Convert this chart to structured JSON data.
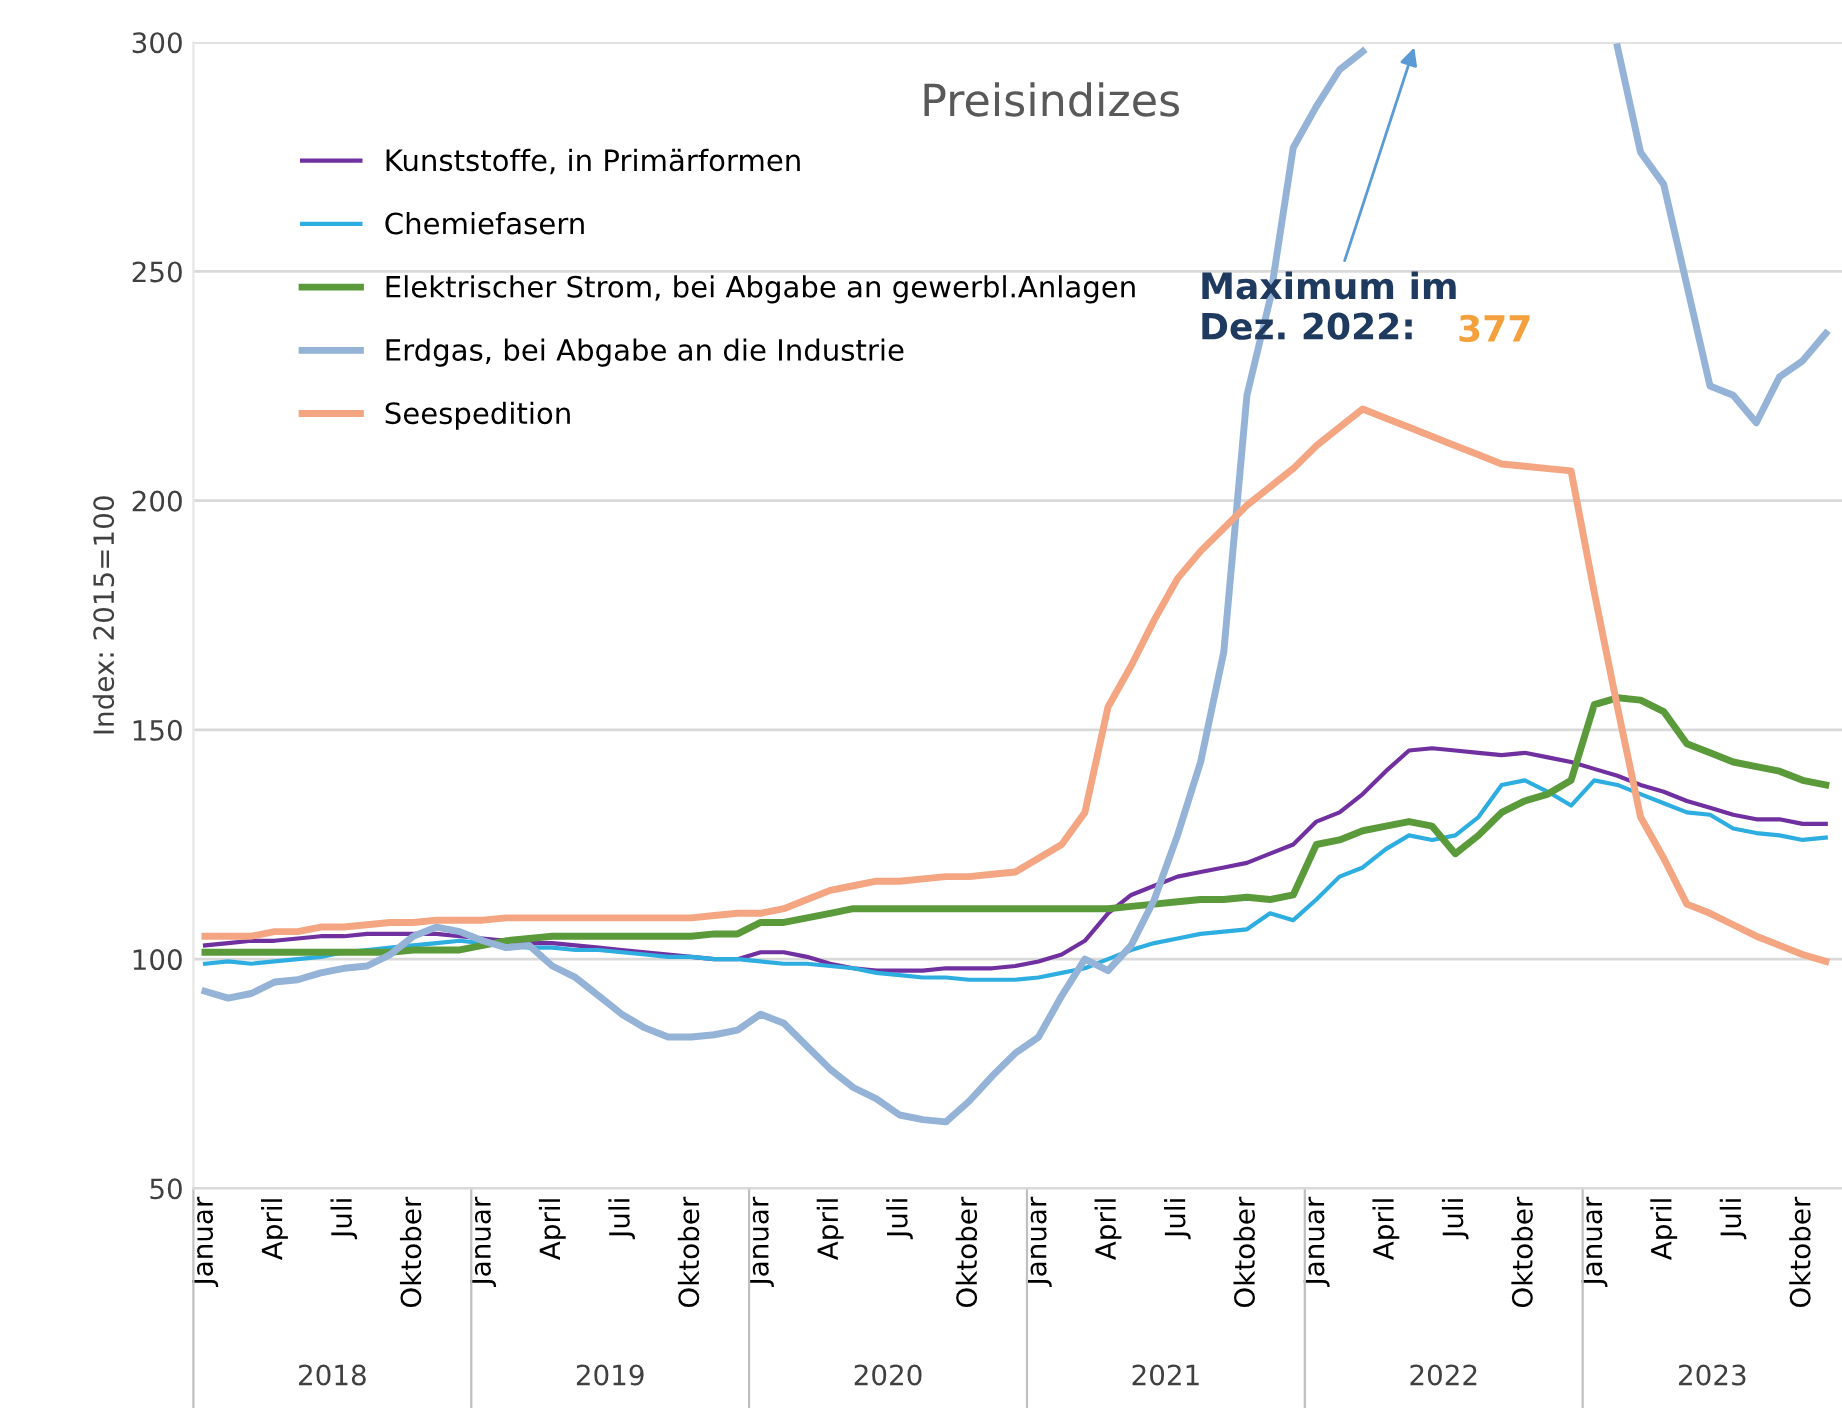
{
  "chart_data": {
    "type": "line",
    "title": "Preisindizes",
    "ylabel": "Index: 2015=100",
    "categories": [
      "Januar",
      null,
      null,
      "April",
      null,
      null,
      "Juli",
      null,
      null,
      "Oktober",
      null,
      null,
      "Januar",
      null,
      null,
      "April",
      null,
      null,
      "Juli",
      null,
      null,
      "Oktober",
      null,
      null,
      "Januar",
      null,
      null,
      "April",
      null,
      null,
      "Juli",
      null,
      null,
      "Oktober",
      null,
      null,
      "Januar",
      null,
      null,
      "April",
      null,
      null,
      "Juli",
      null,
      null,
      "Oktober",
      null,
      null,
      "Januar",
      null,
      null,
      "April",
      null,
      null,
      "Juli",
      null,
      null,
      "Oktober",
      null,
      null,
      "Januar",
      null,
      null,
      "April",
      null,
      null,
      "Juli",
      null,
      null,
      "Oktober",
      null
    ],
    "series": [
      {
        "name": "Kunststoffe, in Primärformen",
        "color": "#7030a0",
        "values": [
          103,
          103.5,
          104,
          104,
          104.5,
          105,
          105,
          105.5,
          105.5,
          105.5,
          105.5,
          105,
          104.5,
          104,
          103.5,
          103.5,
          103,
          102.5,
          102,
          101.5,
          101,
          100.5,
          100,
          100,
          101.5,
          101.5,
          100.5,
          99,
          98,
          97.5,
          97.5,
          97.5,
          98,
          98,
          98,
          98.5,
          99.5,
          101,
          104,
          110,
          114,
          116,
          118,
          119,
          120,
          121,
          123,
          125,
          130,
          132,
          136,
          141,
          145.5,
          146,
          145.5,
          145,
          144.5,
          145,
          144,
          143,
          141.5,
          140,
          138,
          136.5,
          134.5,
          133,
          131.5,
          130.5,
          130.5,
          129.5,
          129.5
        ]
      },
      {
        "name": "Chemiefasern",
        "color": "#2eaee0",
        "values": [
          99,
          99.5,
          99,
          99.5,
          100,
          100.5,
          101.5,
          102,
          102.5,
          103,
          103.5,
          104,
          103.5,
          103,
          102.5,
          102.5,
          102,
          102,
          101.5,
          101,
          100.5,
          100.5,
          100,
          100,
          99.5,
          99,
          99,
          98.5,
          98,
          97,
          96.5,
          96,
          96,
          95.5,
          95.5,
          95.5,
          96,
          97,
          98,
          100,
          102,
          103.5,
          104.5,
          105.5,
          106,
          106.5,
          110,
          108.5,
          113,
          118,
          120,
          124,
          127,
          126,
          127,
          131,
          138,
          139,
          136.5,
          133.5,
          139,
          138,
          136,
          134,
          132,
          131.5,
          128.5,
          127.5,
          127,
          126,
          126.5
        ]
      },
      {
        "name": "Elektrischer Strom, bei Abgabe an gewerbl.Anlagen",
        "color": "#5b9a3a",
        "values": [
          101.5,
          101.5,
          101.5,
          101.5,
          101.5,
          101.5,
          101.5,
          101.5,
          101.5,
          102,
          102,
          102,
          103,
          104,
          104.5,
          105,
          105,
          105,
          105,
          105,
          105,
          105,
          105.5,
          105.5,
          108,
          108,
          109,
          110,
          111,
          111,
          111,
          111,
          111,
          111,
          111,
          111,
          111,
          111,
          111,
          111,
          111.5,
          112,
          112.5,
          113,
          113,
          113.5,
          113,
          114,
          125,
          126,
          128,
          129,
          130,
          129,
          123,
          127,
          132,
          134.5,
          136,
          139,
          155.5,
          157,
          156.5,
          154,
          147,
          145,
          143,
          142,
          141,
          139,
          138
        ]
      },
      {
        "name": "Erdgas, bei Abgabe an die Industrie",
        "color": "#95b3d7",
        "values": [
          93,
          91.5,
          92.5,
          95,
          95.5,
          97,
          98,
          98.5,
          101,
          105,
          107,
          106,
          104,
          102.5,
          103,
          98.5,
          96,
          92,
          88,
          85,
          83,
          83,
          83.5,
          84.5,
          88,
          86,
          81,
          76,
          72,
          69.5,
          66,
          65,
          64.5,
          69,
          74.5,
          79.5,
          83,
          92,
          100,
          97.5,
          103,
          113,
          127,
          143,
          167,
          223,
          244,
          277,
          286,
          294,
          298,
          null,
          null,
          null,
          null,
          null,
          null,
          null,
          null,
          null,
          null,
          299,
          276,
          269,
          247,
          225,
          223,
          217,
          227,
          230.5,
          236.5
        ]
      },
      {
        "name": "Seespedition",
        "color": "#f4a582",
        "values": [
          105,
          105,
          105,
          106,
          106,
          107,
          107,
          107.5,
          108,
          108,
          108.5,
          108.5,
          108.5,
          109,
          109,
          109,
          109,
          109,
          109,
          109,
          109,
          109,
          109.5,
          110,
          110,
          111,
          113,
          115,
          116,
          117,
          117,
          117.5,
          118,
          118,
          118.5,
          119,
          122,
          125,
          132,
          155,
          164,
          174,
          183,
          189,
          194,
          199,
          203,
          207,
          212,
          216,
          220,
          218,
          216,
          214,
          212,
          210,
          208,
          207.5,
          207,
          206.5,
          180,
          155,
          131,
          122,
          112,
          110,
          107.5,
          105,
          103,
          101,
          99.5
        ]
      }
    ],
    "ylim": [
      50,
      300
    ],
    "yticks": [
      50,
      100,
      150,
      200,
      250,
      300
    ],
    "grid": "y",
    "legend": "top left",
    "line_style": "solid",
    "marker": "none",
    "annotations": [
      "Maximum im\nDez. 2022: ",
      "377",
      "2018",
      "2019",
      "2020",
      "2021",
      "2022",
      "2023"
    ]
  }
}
